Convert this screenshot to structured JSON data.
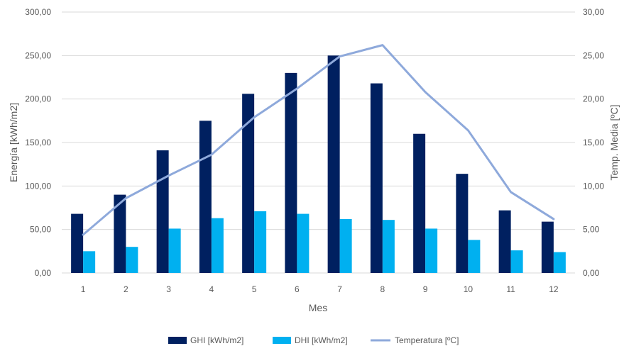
{
  "chart_data": {
    "type": "bar",
    "categories": [
      "1",
      "2",
      "3",
      "4",
      "5",
      "6",
      "7",
      "8",
      "9",
      "10",
      "11",
      "12"
    ],
    "xlabel": "Mes",
    "ylabel_left": "Energía [kWh/m2]",
    "ylabel_right": "Temp. Media [ºC]",
    "ylim_left": [
      0,
      300
    ],
    "ylim_right": [
      0,
      30
    ],
    "yticks_left": [
      "0,00",
      "50,00",
      "100,00",
      "150,00",
      "200,00",
      "250,00",
      "300,00"
    ],
    "yticks_right": [
      "0,00",
      "5,00",
      "10,00",
      "15,00",
      "20,00",
      "25,00",
      "30,00"
    ],
    "grid": true,
    "legend_position": "bottom",
    "series": [
      {
        "name": "GHI [kWh/m2]",
        "type": "bar",
        "axis": "left",
        "color": "#002060",
        "values": [
          68,
          90,
          141,
          175,
          206,
          230,
          250,
          218,
          160,
          114,
          72,
          59
        ]
      },
      {
        "name": "DHI [kWh/m2]",
        "type": "bar",
        "axis": "left",
        "color": "#00B0F0",
        "values": [
          25,
          30,
          51,
          63,
          71,
          68,
          62,
          61,
          51,
          38,
          26,
          24
        ]
      },
      {
        "name": "Temperatura [ºC]",
        "type": "line",
        "axis": "right",
        "color": "#8EA9DB",
        "values": [
          4.4,
          8.6,
          11.2,
          13.6,
          17.9,
          21.2,
          24.9,
          26.2,
          20.8,
          16.4,
          9.3,
          6.2
        ]
      }
    ]
  }
}
